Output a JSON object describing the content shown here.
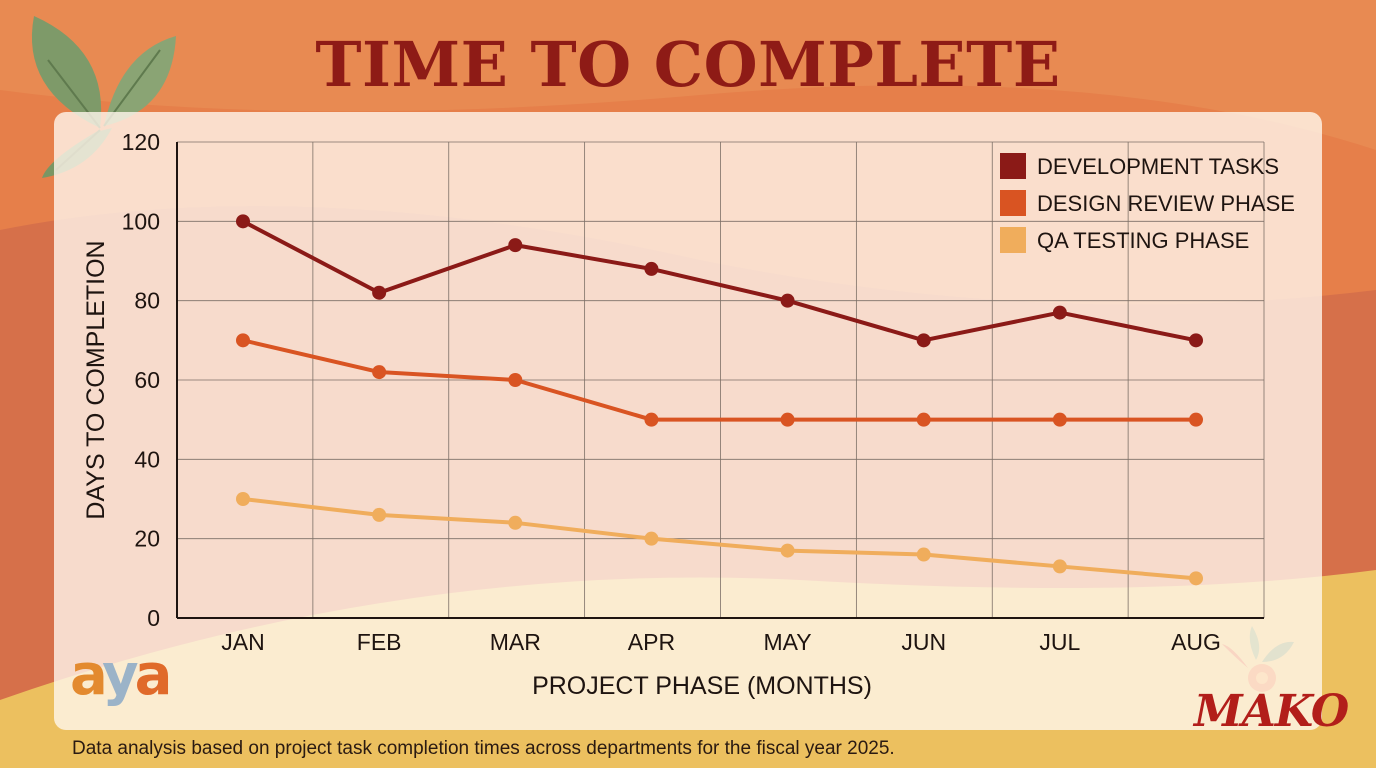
{
  "title": "TIME TO COMPLETE",
  "caption": "Data analysis based on project task completion times across departments for the fiscal year 2025.",
  "logos": {
    "left": "aya",
    "right": "MAKO"
  },
  "colors": {
    "background_top": "#e67f4a",
    "background_bottom": "#ecc05f",
    "title": "#8e1b16"
  },
  "chart_data": {
    "type": "line",
    "xlabel": "PROJECT PHASE (MONTHS)",
    "ylabel": "DAYS TO COMPLETION",
    "categories": [
      "JAN",
      "FEB",
      "MAR",
      "APR",
      "MAY",
      "JUN",
      "JUL",
      "AUG"
    ],
    "ylim": [
      0,
      120
    ],
    "yticks": [
      0,
      20,
      40,
      60,
      80,
      100,
      120
    ],
    "grid": true,
    "legend": "top-right",
    "series": [
      {
        "name": "DEVELOPMENT TASKS",
        "color": "#8b1a17",
        "values": [
          100,
          82,
          94,
          88,
          80,
          70,
          77,
          70
        ]
      },
      {
        "name": "DESIGN REVIEW PHASE",
        "color": "#d95422",
        "values": [
          70,
          62,
          60,
          50,
          50,
          50,
          50,
          50
        ]
      },
      {
        "name": "QA TESTING PHASE",
        "color": "#f0ad5c",
        "values": [
          30,
          26,
          24,
          20,
          17,
          16,
          13,
          10
        ]
      }
    ]
  }
}
